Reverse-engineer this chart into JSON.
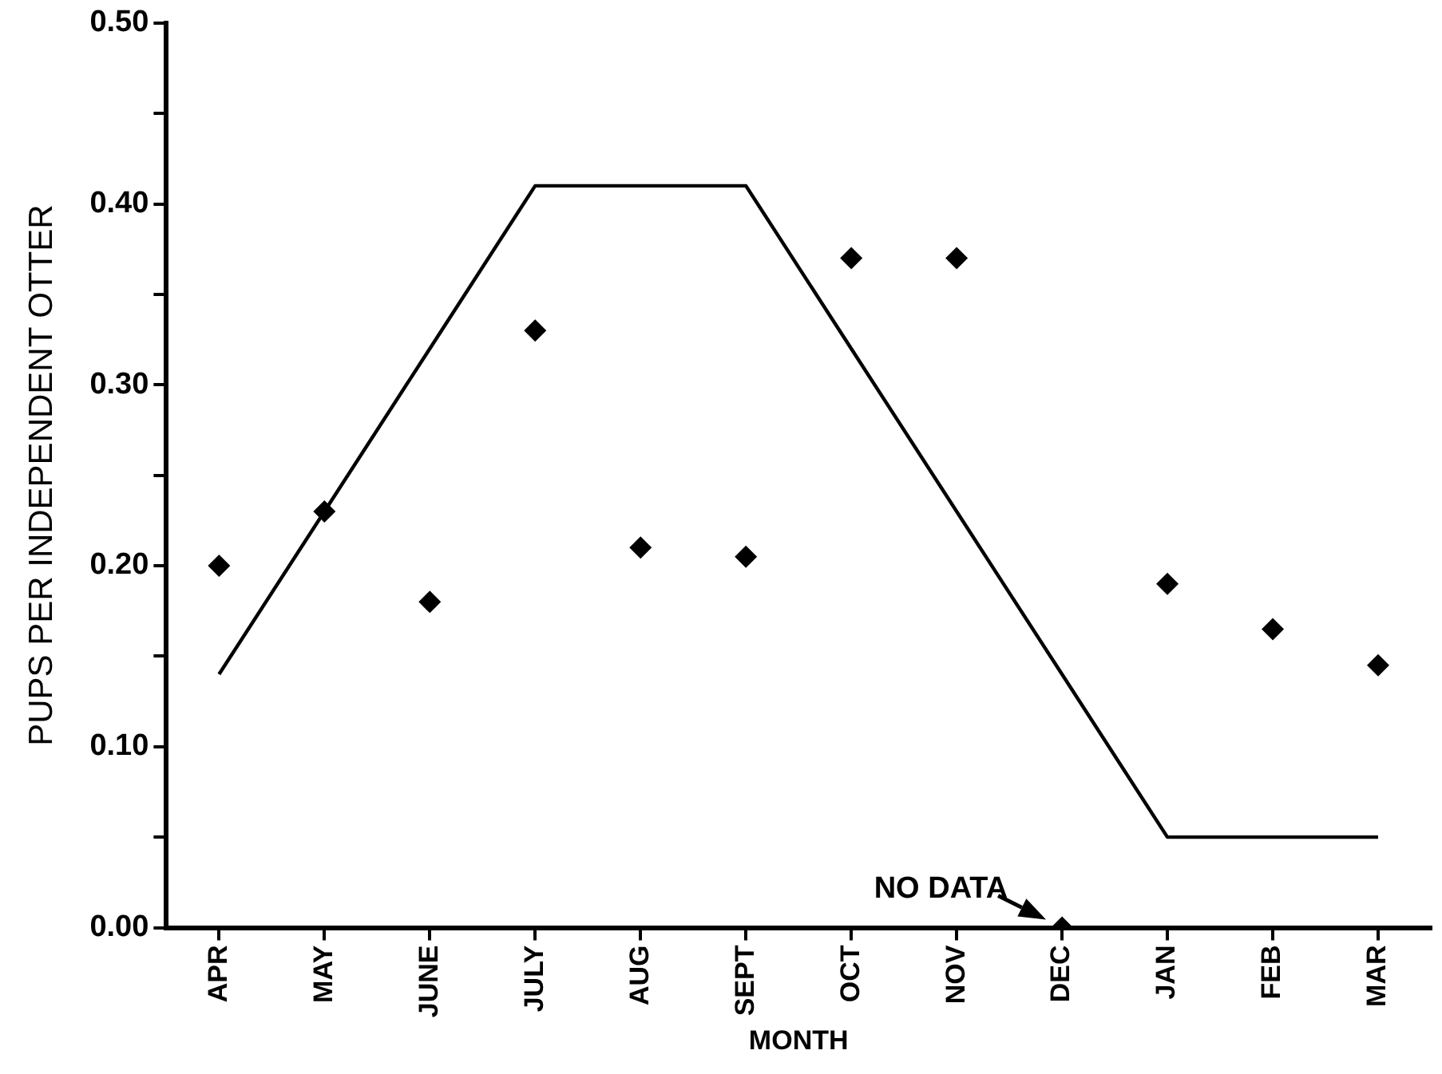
{
  "chart_data": {
    "type": "scatter",
    "ylabel": "PUPS PER INDEPENDENT OTTER",
    "xlabel": "MONTH",
    "categories": [
      "APR",
      "MAY",
      "JUNE",
      "JULY",
      "AUG",
      "SEPT",
      "OCT",
      "NOV",
      "DEC",
      "JAN",
      "FEB",
      "MAR"
    ],
    "series": [
      {
        "type": "line",
        "color": "#000000",
        "marker": "none",
        "line_style": "solid",
        "values": [
          0.14,
          0.23,
          0.32,
          0.41,
          0.41,
          0.41,
          0.32,
          0.23,
          0.14,
          0.05,
          0.05,
          0.05
        ]
      },
      {
        "type": "scatter",
        "color": "#000000",
        "marker": "diamond",
        "values": [
          0.2,
          0.23,
          0.18,
          0.33,
          0.21,
          0.205,
          0.37,
          0.37,
          0,
          0.19,
          0.165,
          0.145
        ]
      }
    ],
    "ylim": [
      0,
      0.5
    ],
    "yticks": [
      {
        "value": 0,
        "label": "0.00"
      },
      {
        "value": 0.05,
        "label": null
      },
      {
        "value": 0.1,
        "label": "0.10"
      },
      {
        "value": 0.15,
        "label": null
      },
      {
        "value": 0.2,
        "label": "0.20"
      },
      {
        "value": 0.25,
        "label": null
      },
      {
        "value": 0.3,
        "label": "0.30"
      },
      {
        "value": 0.35,
        "label": null
      },
      {
        "value": 0.4,
        "label": "0.40"
      },
      {
        "value": 0.45,
        "label": null
      },
      {
        "value": 0.5,
        "label": "0.50"
      }
    ],
    "annotations": [
      {
        "text": "NO DATA",
        "x": "DEC",
        "y": 0
      }
    ],
    "grid": false,
    "legend": false
  }
}
